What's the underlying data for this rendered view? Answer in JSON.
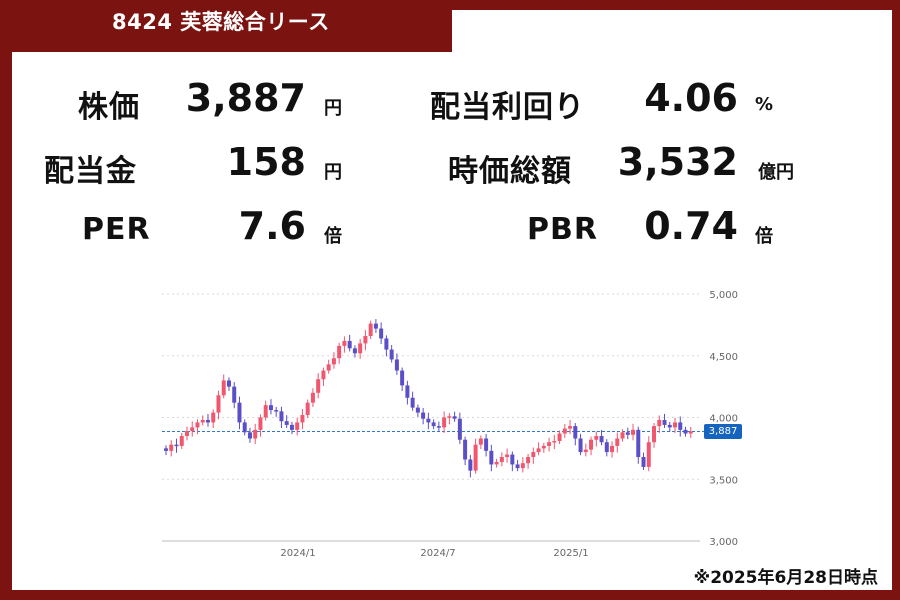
{
  "header": {
    "title": "8424 芙蓉総合リース"
  },
  "metrics": {
    "price": {
      "label": "株価",
      "value": "3,887",
      "unit": "円"
    },
    "dividend_yield": {
      "label": "配当利回り",
      "value": "4.06",
      "unit": "%"
    },
    "dividend": {
      "label": "配当金",
      "value": "158",
      "unit": "円"
    },
    "market_cap": {
      "label": "時価総額",
      "value": "3,532",
      "unit": "億円"
    },
    "per": {
      "label": "PER",
      "value": "7.6",
      "unit": "倍"
    },
    "pbr": {
      "label": "PBR",
      "value": "0.74",
      "unit": "倍"
    }
  },
  "chart_data": {
    "type": "candlestick",
    "y_ticks": [
      "5,000",
      "4,500",
      "4,000",
      "3,500",
      "3,000"
    ],
    "ylim": [
      3000,
      5000
    ],
    "x_ticks": [
      "2024/1",
      "2024/7",
      "2025/1"
    ],
    "current_price_label": "3,887",
    "current_price": 3887,
    "grid": true,
    "colors": {
      "up": "#f0566e",
      "down": "#5a4fc6",
      "last_price": "#1565c0"
    },
    "close_series": [
      3730,
      3780,
      3770,
      3850,
      3890,
      3920,
      3960,
      3980,
      3960,
      4040,
      4180,
      4300,
      4250,
      4120,
      3960,
      3880,
      3830,
      3900,
      4000,
      4100,
      4060,
      4050,
      3970,
      3940,
      3900,
      3960,
      4020,
      4120,
      4200,
      4310,
      4380,
      4430,
      4480,
      4580,
      4620,
      4560,
      4520,
      4600,
      4660,
      4760,
      4720,
      4640,
      4550,
      4470,
      4380,
      4260,
      4160,
      4080,
      4040,
      3990,
      3960,
      3930,
      3920,
      4000,
      4010,
      3990,
      3820,
      3660,
      3570,
      3780,
      3830,
      3730,
      3620,
      3640,
      3680,
      3700,
      3620,
      3590,
      3630,
      3680,
      3720,
      3750,
      3770,
      3800,
      3810,
      3870,
      3910,
      3930,
      3830,
      3720,
      3740,
      3820,
      3850,
      3800,
      3720,
      3770,
      3830,
      3880,
      3860,
      3900,
      3680,
      3600,
      3800,
      3930,
      3980,
      3940,
      3920,
      3960,
      3900,
      3870,
      3887
    ],
    "caption": "※2025年6月28日時点"
  }
}
